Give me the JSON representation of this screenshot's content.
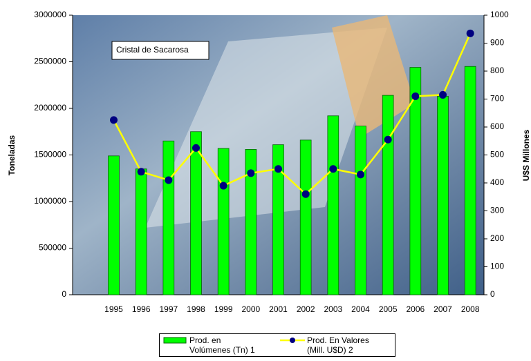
{
  "chart_data": {
    "type": "bar-line",
    "annotation": "Cristal de Sacarosa",
    "y_label": "Toneladas",
    "y2_label": "U$S Millones",
    "categories": [
      null,
      "1995",
      "1996",
      "1997",
      "1998",
      "1999",
      "2000",
      "2001",
      "2002",
      "2003",
      "2004",
      "2005",
      "2006",
      "2007",
      "2008"
    ],
    "series": [
      {
        "name": "Prod. en Volúmenes (Tn) 1",
        "type": "bar",
        "color": "#00ff00",
        "values": [
          null,
          1490000,
          1350000,
          1650000,
          1750000,
          1570000,
          1560000,
          1610000,
          1660000,
          1920000,
          1810000,
          2140000,
          2440000,
          2130000,
          2450000
        ]
      },
      {
        "name": "Prod. En Valores (Mill. U$D) 2",
        "type": "line",
        "axis": "y2",
        "color": "#ffff00",
        "marker_color": "#000080",
        "values": [
          null,
          625,
          440,
          410,
          525,
          390,
          435,
          450,
          360,
          450,
          430,
          555,
          710,
          715,
          935
        ]
      }
    ],
    "ylim": [
      0,
      3000000
    ],
    "yticks": [
      0,
      500000,
      1000000,
      1500000,
      2000000,
      2500000,
      3000000
    ],
    "y2lim": [
      0,
      1000
    ],
    "y2ticks": [
      0,
      100,
      200,
      300,
      400,
      500,
      600,
      700,
      800,
      900,
      1000
    ]
  }
}
